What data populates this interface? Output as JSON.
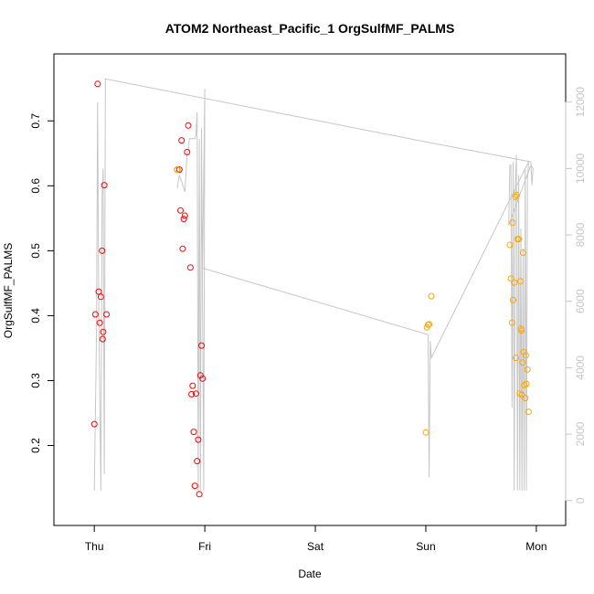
{
  "chart_data": {
    "type": "scatter",
    "title": "ATOM2 Northeast_Pacific_1 OrgSulfMF_PALMS",
    "xlabel": "Date",
    "ylabel": "OrgSulfMF_PALMS",
    "x_ticks": [
      {
        "day": 0,
        "label": "Thu"
      },
      {
        "day": 1,
        "label": "Fri"
      },
      {
        "day": 2,
        "label": "Sat"
      },
      {
        "day": 3,
        "label": "Sun"
      },
      {
        "day": 4,
        "label": "Mon"
      }
    ],
    "xlim": [
      -0.2,
      4.1
    ],
    "ylim": [
      0.105,
      0.775
    ],
    "y_ticks": [
      0.2,
      0.3,
      0.4,
      0.5,
      0.6,
      0.7
    ],
    "y_tick_labels": [
      "0.2",
      "0.3",
      "0.4",
      "0.5",
      "0.6",
      "0.7"
    ],
    "y2lim": [
      -200,
      12900
    ],
    "y2_ticks": [
      0,
      2000,
      4000,
      6000,
      8000,
      10000,
      12000
    ],
    "y2_tick_labels": [
      "0",
      "2000",
      "4000",
      "6000",
      "8000",
      "10000",
      "12000"
    ],
    "grid": false,
    "series": [
      {
        "color": "#ff0000",
        "marker": "open-circle",
        "points": [
          {
            "x": 0.0,
            "y": 0.233
          },
          {
            "x": 0.01,
            "y": 0.402
          },
          {
            "x": 0.03,
            "y": 0.757
          },
          {
            "x": 0.04,
            "y": 0.437
          },
          {
            "x": 0.05,
            "y": 0.389
          },
          {
            "x": 0.06,
            "y": 0.429
          },
          {
            "x": 0.07,
            "y": 0.5
          },
          {
            "x": 0.075,
            "y": 0.364
          },
          {
            "x": 0.08,
            "y": 0.375
          },
          {
            "x": 0.09,
            "y": 0.601
          },
          {
            "x": 0.11,
            "y": 0.402
          },
          {
            "x": 0.75,
            "y": 0.625
          },
          {
            "x": 0.77,
            "y": 0.625
          },
          {
            "x": 0.78,
            "y": 0.562
          },
          {
            "x": 0.79,
            "y": 0.67
          },
          {
            "x": 0.8,
            "y": 0.503
          },
          {
            "x": 0.81,
            "y": 0.549
          },
          {
            "x": 0.82,
            "y": 0.554
          },
          {
            "x": 0.84,
            "y": 0.652
          },
          {
            "x": 0.85,
            "y": 0.693
          },
          {
            "x": 0.87,
            "y": 0.474
          },
          {
            "x": 0.88,
            "y": 0.279
          },
          {
            "x": 0.89,
            "y": 0.292
          },
          {
            "x": 0.9,
            "y": 0.221
          },
          {
            "x": 0.91,
            "y": 0.138
          },
          {
            "x": 0.92,
            "y": 0.28
          },
          {
            "x": 0.93,
            "y": 0.176
          },
          {
            "x": 0.94,
            "y": 0.209
          },
          {
            "x": 0.95,
            "y": 0.125
          },
          {
            "x": 0.96,
            "y": 0.308
          },
          {
            "x": 0.97,
            "y": 0.354
          },
          {
            "x": 0.98,
            "y": 0.303
          }
        ]
      },
      {
        "color": "#ffa500",
        "marker": "open-circle",
        "points": [
          {
            "x": 0.75,
            "y": 0.625
          },
          {
            "x": 3.0,
            "y": 0.22
          },
          {
            "x": 3.01,
            "y": 0.382
          },
          {
            "x": 3.02,
            "y": 0.386
          },
          {
            "x": 3.03,
            "y": 0.387
          },
          {
            "x": 3.05,
            "y": 0.43
          },
          {
            "x": 3.76,
            "y": 0.509
          },
          {
            "x": 3.77,
            "y": 0.457
          },
          {
            "x": 3.78,
            "y": 0.389
          },
          {
            "x": 3.785,
            "y": 0.543
          },
          {
            "x": 3.79,
            "y": 0.424
          },
          {
            "x": 3.8,
            "y": 0.451
          },
          {
            "x": 3.81,
            "y": 0.583
          },
          {
            "x": 3.815,
            "y": 0.335
          },
          {
            "x": 3.82,
            "y": 0.586
          },
          {
            "x": 3.83,
            "y": 0.518
          },
          {
            "x": 3.84,
            "y": 0.518
          },
          {
            "x": 3.85,
            "y": 0.28
          },
          {
            "x": 3.855,
            "y": 0.453
          },
          {
            "x": 3.86,
            "y": 0.38
          },
          {
            "x": 3.865,
            "y": 0.377
          },
          {
            "x": 3.87,
            "y": 0.278
          },
          {
            "x": 3.875,
            "y": 0.328
          },
          {
            "x": 3.88,
            "y": 0.497
          },
          {
            "x": 3.885,
            "y": 0.344
          },
          {
            "x": 3.89,
            "y": 0.293
          },
          {
            "x": 3.9,
            "y": 0.273
          },
          {
            "x": 3.905,
            "y": 0.339
          },
          {
            "x": 3.91,
            "y": 0.295
          },
          {
            "x": 3.92,
            "y": 0.317
          },
          {
            "x": 3.93,
            "y": 0.252
          }
        ]
      },
      {
        "color": "#c6c6c6",
        "marker": "line",
        "axis": "right",
        "points": [
          {
            "x": 0.0,
            "y": 300
          },
          {
            "x": 0.02,
            "y": 5000
          },
          {
            "x": 0.03,
            "y": 12000
          },
          {
            "x": 0.04,
            "y": 6000
          },
          {
            "x": 0.05,
            "y": 3000
          },
          {
            "x": 0.06,
            "y": 300
          },
          {
            "x": 0.07,
            "y": 9200
          },
          {
            "x": 0.08,
            "y": 10000
          },
          {
            "x": 0.09,
            "y": 800
          },
          {
            "x": 0.1,
            "y": 12700
          },
          {
            "x": 3.0,
            "y": 10800
          },
          {
            "x": 3.95,
            "y": 10200
          },
          {
            "x": 3.96,
            "y": 9500
          },
          {
            "x": 3.97,
            "y": 10000
          },
          {
            "x": 3.95,
            "y": 10100
          },
          {
            "x": 3.75,
            "y": 8300
          },
          {
            "x": 3.76,
            "y": 10100
          },
          {
            "x": 3.77,
            "y": 10100
          },
          {
            "x": 3.78,
            "y": 2800
          },
          {
            "x": 3.79,
            "y": 10200
          },
          {
            "x": 3.8,
            "y": 300
          },
          {
            "x": 3.81,
            "y": 9500
          },
          {
            "x": 3.82,
            "y": 10400
          },
          {
            "x": 3.83,
            "y": 300
          },
          {
            "x": 3.84,
            "y": 9800
          },
          {
            "x": 3.85,
            "y": 300
          },
          {
            "x": 3.86,
            "y": 8200
          },
          {
            "x": 3.87,
            "y": 300
          },
          {
            "x": 3.88,
            "y": 7600
          },
          {
            "x": 3.89,
            "y": 300
          },
          {
            "x": 3.9,
            "y": 10000
          },
          {
            "x": 3.91,
            "y": 300
          },
          {
            "x": 3.92,
            "y": 9700
          },
          {
            "x": 3.93,
            "y": 10200
          },
          {
            "x": 3.05,
            "y": 4300
          },
          {
            "x": 3.04,
            "y": 4800
          },
          {
            "x": 3.03,
            "y": 700
          },
          {
            "x": 3.02,
            "y": 5000
          },
          {
            "x": 0.98,
            "y": 7000
          },
          {
            "x": 1.0,
            "y": 12400
          },
          {
            "x": 0.99,
            "y": 300
          },
          {
            "x": 0.97,
            "y": 11200
          },
          {
            "x": 0.96,
            "y": 300
          },
          {
            "x": 0.95,
            "y": 10900
          },
          {
            "x": 0.94,
            "y": 300
          },
          {
            "x": 0.93,
            "y": 11700
          },
          {
            "x": 0.92,
            "y": 11000
          },
          {
            "x": 0.91,
            "y": 10900
          },
          {
            "x": 0.9,
            "y": 10900
          },
          {
            "x": 0.86,
            "y": 10900
          },
          {
            "x": 0.85,
            "y": 10500
          },
          {
            "x": 0.84,
            "y": 10500
          },
          {
            "x": 0.83,
            "y": 9900
          },
          {
            "x": 0.82,
            "y": 9300
          },
          {
            "x": 0.8,
            "y": 9500
          },
          {
            "x": 0.78,
            "y": 9700
          },
          {
            "x": 0.77,
            "y": 9800
          },
          {
            "x": 0.75,
            "y": 9400
          }
        ]
      }
    ]
  }
}
